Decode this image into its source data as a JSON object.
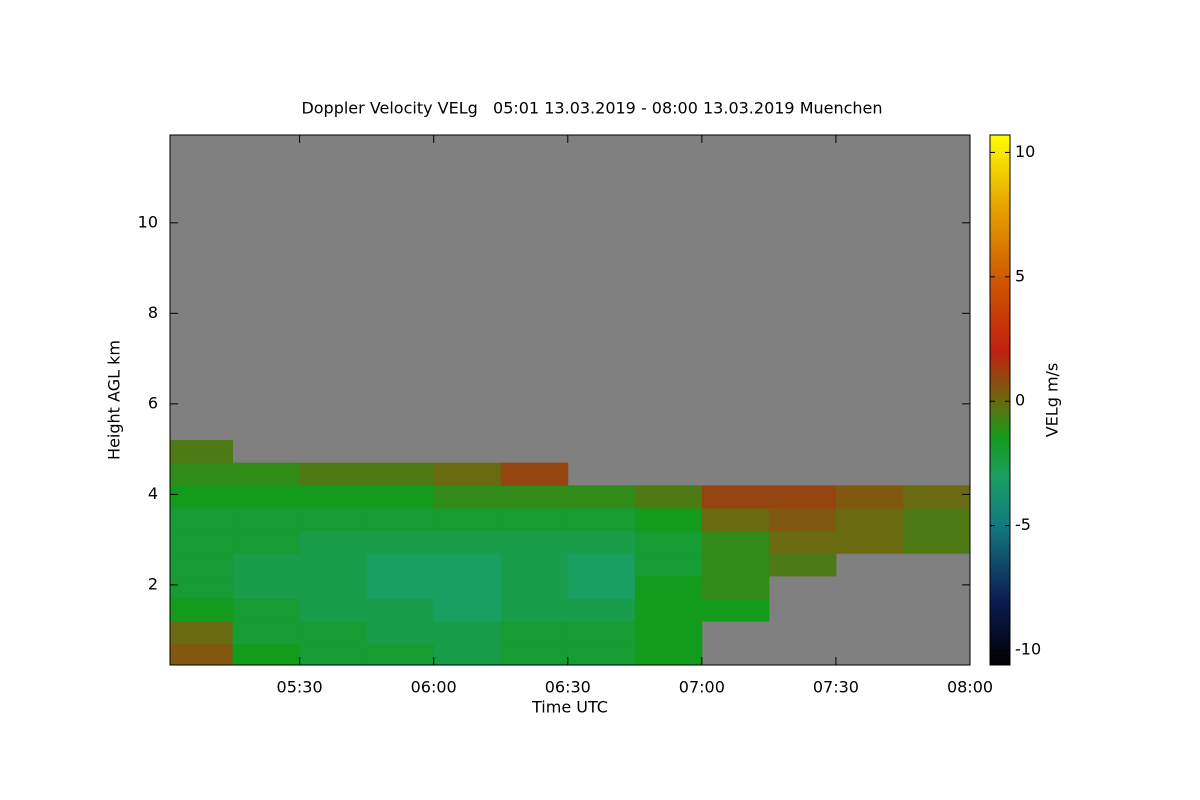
{
  "chart_data": {
    "type": "heatmap",
    "title": "Doppler Velocity VELg   05:01 13.03.2019 - 08:00 13.03.2019 Muenchen",
    "x_label": "Time UTC",
    "y_label": "Height AGL km",
    "colorbar_label": "VELg m/s",
    "xlim": [
      1,
      180
    ],
    "xticks": [
      {
        "value": 30,
        "label": "05:30"
      },
      {
        "value": 60,
        "label": "06:00"
      },
      {
        "value": 90,
        "label": "06:30"
      },
      {
        "value": 120,
        "label": "07:00"
      },
      {
        "value": 150,
        "label": "07:30"
      },
      {
        "value": 180,
        "label": "08:00"
      }
    ],
    "ylim": [
      0.23,
      11.94
    ],
    "yticks": [
      2,
      4,
      6,
      8,
      10
    ],
    "zlim": [
      -10.6,
      10.7
    ],
    "zticks": [
      -10,
      -5,
      0,
      5,
      10
    ],
    "nodata_color": "#808080",
    "colormap": [
      {
        "value": -10.6,
        "color": "#000000"
      },
      {
        "value": -8,
        "color": "#0b1c55"
      },
      {
        "value": -5,
        "color": "#127a80"
      },
      {
        "value": -3,
        "color": "#1a9f62"
      },
      {
        "value": -1.5,
        "color": "#139b1c"
      },
      {
        "value": 0,
        "color": "#6a6a10"
      },
      {
        "value": 2,
        "color": "#c02010"
      },
      {
        "value": 5,
        "color": "#d05a00"
      },
      {
        "value": 8,
        "color": "#e8a800"
      },
      {
        "value": 10.7,
        "color": "#ffff00"
      }
    ],
    "xbins": [
      1,
      15,
      30,
      45,
      60,
      75,
      90,
      105,
      120,
      135,
      150,
      165,
      180
    ],
    "ybins": [
      0.2,
      0.7,
      1.2,
      1.7,
      2.2,
      2.7,
      3.2,
      3.7,
      4.2,
      4.7,
      5.2
    ],
    "z": [
      [
        0.5,
        -1.5,
        -2,
        -2,
        -2.5,
        -2,
        -2,
        -1.5,
        null,
        null,
        null,
        null
      ],
      [
        0,
        -2,
        -2,
        -2.5,
        -2.5,
        -2,
        -2,
        -1.5,
        null,
        null,
        null,
        null
      ],
      [
        -1.5,
        -2,
        -2.5,
        -2.5,
        -3,
        -2.5,
        -2.5,
        -1.5,
        -1.5,
        null,
        null,
        null
      ],
      [
        -2,
        -2.5,
        -2.5,
        -3,
        -3,
        -2.5,
        -3,
        -1.5,
        -1,
        null,
        null,
        null
      ],
      [
        -2,
        -2.5,
        -2.5,
        -3,
        -3,
        -2.5,
        -3,
        -2,
        -1,
        -0.5,
        null,
        null
      ],
      [
        -2,
        -2,
        -2.5,
        -2.5,
        -2.5,
        -2.5,
        -2.5,
        -2,
        -1,
        0,
        0,
        -0.5
      ],
      [
        -2,
        -2,
        -2,
        -2,
        -2,
        -2,
        -2,
        -1.5,
        0,
        0.5,
        0,
        -0.5
      ],
      [
        -1.5,
        -1.5,
        -1.5,
        -1.5,
        -1,
        -1,
        -1,
        -0.5,
        1,
        1,
        0.5,
        0
      ],
      [
        -1,
        -1,
        -0.5,
        -0.5,
        0,
        1,
        null,
        null,
        null,
        null,
        null,
        null
      ],
      [
        -0.5,
        null,
        null,
        null,
        null,
        null,
        null,
        null,
        null,
        null,
        null,
        null
      ]
    ]
  }
}
